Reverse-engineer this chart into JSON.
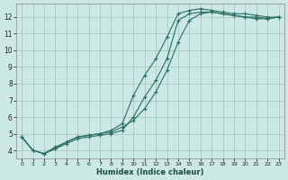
{
  "xlabel": "Humidex (Indice chaleur)",
  "ylabel": "",
  "bg_color": "#cce8e4",
  "grid_color": "#aac8c2",
  "line_color": "#2a6e62",
  "xlim": [
    -0.5,
    23.5
  ],
  "ylim": [
    3.5,
    12.8
  ],
  "xticks": [
    0,
    1,
    2,
    3,
    4,
    5,
    6,
    7,
    8,
    9,
    10,
    11,
    12,
    13,
    14,
    15,
    16,
    17,
    18,
    19,
    20,
    21,
    22,
    23
  ],
  "yticks": [
    4,
    5,
    6,
    7,
    8,
    9,
    10,
    11,
    12
  ],
  "series1_x": [
    0,
    1,
    2,
    3,
    4,
    5,
    6,
    7,
    8,
    9,
    10,
    11,
    12,
    13,
    14,
    15,
    16,
    17,
    18,
    19,
    20,
    21,
    22,
    23
  ],
  "series1_y": [
    4.8,
    4.0,
    3.8,
    4.1,
    4.5,
    4.8,
    4.9,
    5.0,
    5.1,
    5.4,
    5.8,
    6.5,
    7.5,
    8.8,
    10.5,
    11.8,
    12.2,
    12.3,
    12.2,
    12.1,
    12.0,
    12.0,
    11.9,
    12.0
  ],
  "series2_x": [
    0,
    1,
    2,
    3,
    4,
    5,
    6,
    7,
    8,
    9,
    10,
    11,
    12,
    13,
    14,
    15,
    16,
    17,
    18,
    19,
    20,
    21,
    22,
    23
  ],
  "series2_y": [
    4.8,
    4.0,
    3.8,
    4.1,
    4.4,
    4.7,
    4.8,
    4.9,
    5.0,
    5.2,
    6.0,
    7.2,
    8.2,
    9.5,
    11.8,
    12.2,
    12.3,
    12.3,
    12.2,
    12.1,
    12.0,
    11.9,
    11.9,
    12.0
  ],
  "series3_x": [
    0,
    1,
    2,
    3,
    4,
    5,
    6,
    7,
    8,
    9,
    10,
    11,
    12,
    13,
    14,
    15,
    16,
    17,
    18,
    19,
    20,
    21,
    22,
    23
  ],
  "series3_y": [
    4.8,
    4.0,
    3.8,
    4.2,
    4.5,
    4.8,
    4.9,
    5.0,
    5.2,
    5.6,
    7.3,
    8.5,
    9.5,
    10.8,
    12.2,
    12.4,
    12.5,
    12.4,
    12.3,
    12.2,
    12.2,
    12.1,
    12.0,
    12.0
  ]
}
